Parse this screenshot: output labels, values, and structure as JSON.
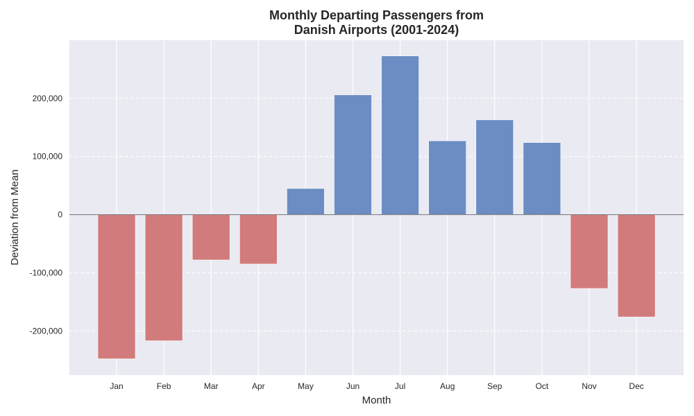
{
  "chart_data": {
    "type": "bar",
    "title_lines": [
      "Monthly Departing Passengers from",
      "Danish Airports (2001-2024)"
    ],
    "xlabel": "Month",
    "ylabel": "Deviation from Mean",
    "categories": [
      "Jan",
      "Feb",
      "Mar",
      "Apr",
      "May",
      "Jun",
      "Jul",
      "Aug",
      "Sep",
      "Oct",
      "Nov",
      "Dec"
    ],
    "values": [
      -248000,
      -217000,
      -78000,
      -85000,
      45000,
      206000,
      273000,
      127000,
      163000,
      124000,
      -127000,
      -176000
    ],
    "ylim": [
      -276000,
      300000
    ],
    "yticks": [
      -200000,
      -100000,
      0,
      100000,
      200000
    ],
    "ytick_labels": [
      "-200,000",
      "-100,000",
      "0",
      "100,000",
      "200,000"
    ],
    "grid": true,
    "colors": {
      "positive": "#6b8dc3",
      "negative": "#d27b7c",
      "background": "#eaeaf2",
      "zero_line": "#808080"
    }
  }
}
